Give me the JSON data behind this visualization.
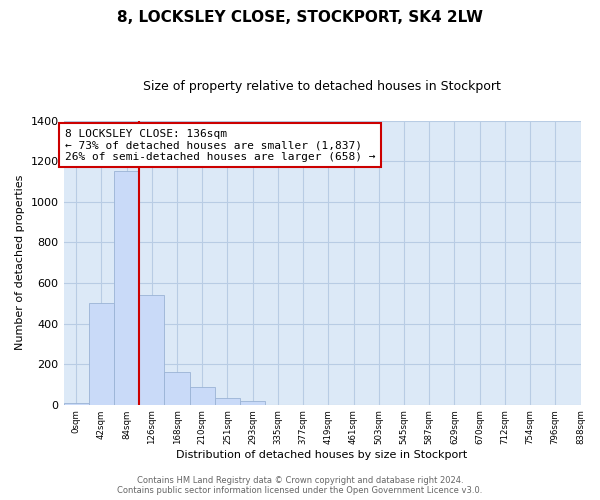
{
  "title": "8, LOCKSLEY CLOSE, STOCKPORT, SK4 2LW",
  "subtitle": "Size of property relative to detached houses in Stockport",
  "xlabel": "Distribution of detached houses by size in Stockport",
  "ylabel": "Number of detached properties",
  "bin_labels": [
    "0sqm",
    "42sqm",
    "84sqm",
    "126sqm",
    "168sqm",
    "210sqm",
    "251sqm",
    "293sqm",
    "335sqm",
    "377sqm",
    "419sqm",
    "461sqm",
    "503sqm",
    "545sqm",
    "587sqm",
    "629sqm",
    "670sqm",
    "712sqm",
    "754sqm",
    "796sqm",
    "838sqm"
  ],
  "bar_heights": [
    10,
    500,
    1150,
    540,
    160,
    85,
    35,
    20,
    0,
    0,
    0,
    0,
    0,
    0,
    0,
    0,
    0,
    0,
    0,
    0
  ],
  "bar_color": "#c9daf8",
  "bar_edge_color": "#9ab3d5",
  "grid_color": "#b8cce4",
  "property_line_x": 3,
  "property_line_color": "#cc0000",
  "annotation_text": "8 LOCKSLEY CLOSE: 136sqm\n← 73% of detached houses are smaller (1,837)\n26% of semi-detached houses are larger (658) →",
  "annotation_box_color": "#ffffff",
  "annotation_box_edge_color": "#cc0000",
  "ylim": [
    0,
    1400
  ],
  "yticks": [
    0,
    200,
    400,
    600,
    800,
    1000,
    1200,
    1400
  ],
  "footer_line1": "Contains HM Land Registry data © Crown copyright and database right 2024.",
  "footer_line2": "Contains public sector information licensed under the Open Government Licence v3.0.",
  "background_color": "#ffffff",
  "plot_bg_color": "#dce9f7"
}
